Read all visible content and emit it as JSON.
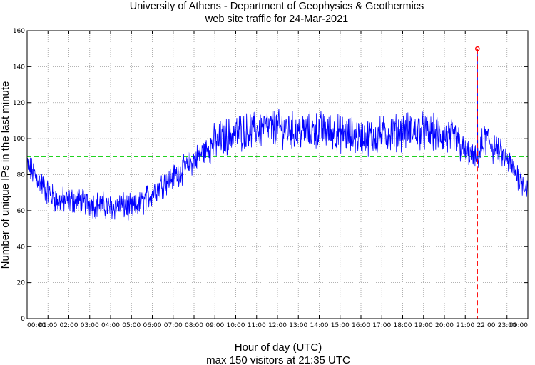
{
  "chart_data": {
    "type": "line",
    "title": "University of Athens - Department of Geophysics & Geothermics",
    "subtitle": "web site traffic for 24-Mar-2021",
    "xlabel": "Hour of day (UTC)",
    "ylabel": "Number of unique IPs in the last minute",
    "footer": "max 150 visitors at 21:35 UTC",
    "xlim": [
      "00:00",
      "24:00"
    ],
    "ylim": [
      0,
      160
    ],
    "x_tick_labels": [
      "00:00",
      "01:00",
      "02:00",
      "03:00",
      "04:00",
      "05:00",
      "06:00",
      "07:00",
      "08:00",
      "09:00",
      "10:00",
      "11:00",
      "12:00",
      "13:00",
      "14:00",
      "15:00",
      "16:00",
      "17:00",
      "18:00",
      "19:00",
      "20:00",
      "21:00",
      "22:00",
      "23:00",
      "00:00"
    ],
    "y_tick_labels": [
      "0",
      "20",
      "40",
      "60",
      "80",
      "100",
      "120",
      "140",
      "160"
    ],
    "grid": true,
    "series": [
      {
        "color": "#0000ff",
        "x": [
          "00:00",
          "00:30",
          "01:00",
          "01:30",
          "02:00",
          "02:30",
          "03:00",
          "03:30",
          "04:00",
          "04:30",
          "05:00",
          "05:30",
          "06:00",
          "06:30",
          "07:00",
          "07:30",
          "08:00",
          "08:30",
          "09:00",
          "09:30",
          "10:00",
          "10:30",
          "11:00",
          "11:30",
          "12:00",
          "12:30",
          "13:00",
          "13:30",
          "14:00",
          "14:30",
          "15:00",
          "15:30",
          "16:00",
          "16:30",
          "17:00",
          "17:30",
          "18:00",
          "18:30",
          "19:00",
          "19:30",
          "20:00",
          "20:30",
          "21:00",
          "21:30",
          "22:00",
          "22:30",
          "23:00",
          "23:30",
          "24:00"
        ],
        "y": [
          85,
          78,
          70,
          65,
          66,
          65,
          64,
          63,
          62,
          63,
          61,
          64,
          70,
          75,
          79,
          83,
          88,
          93,
          98,
          101,
          103,
          104,
          105,
          106,
          106,
          105,
          104,
          104,
          105,
          104,
          103,
          102,
          101,
          101,
          102,
          103,
          104,
          105,
          104,
          103,
          101,
          100,
          93,
          88,
          100,
          94,
          88,
          80,
          72
        ]
      }
    ],
    "reference_line": {
      "y": 90,
      "color": "#00cc00"
    },
    "max_marker": {
      "x": "21:35",
      "y": 150,
      "color": "#ff0000"
    }
  }
}
